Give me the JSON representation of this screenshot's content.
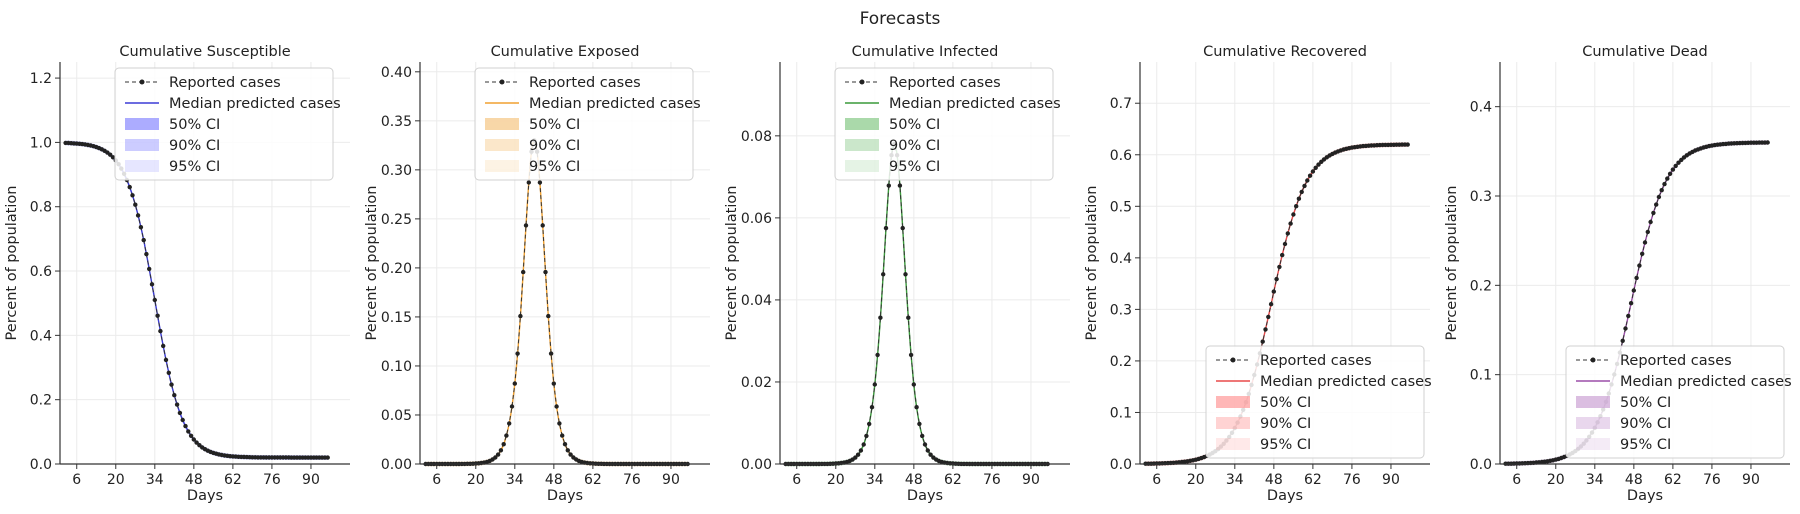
{
  "figure_title": "Forecasts",
  "legend_labels": [
    "Reported cases",
    "Median predicted cases",
    "50% CI",
    "90% CI",
    "95% CI"
  ],
  "chart_data": [
    {
      "type": "line",
      "title": "Cumulative Susceptible",
      "xlabel": "Days",
      "ylabel": "Percent of population",
      "xlim": [
        0,
        104
      ],
      "ylim": [
        0,
        1.25
      ],
      "xticks": [
        6,
        20,
        34,
        48,
        62,
        76,
        90
      ],
      "yticks": [
        0.0,
        0.2,
        0.4,
        0.6,
        0.8,
        1.0,
        1.2
      ],
      "ytick_labels": [
        "0.0",
        "0.2",
        "0.4",
        "0.6",
        "0.8",
        "1.0",
        "1.2"
      ],
      "color": "#3b3bd6",
      "band_color": "#8080ff",
      "curve": "sigmoid_down",
      "params": {
        "start": 1.0,
        "end": 0.02,
        "center": 34,
        "scale": 5
      },
      "legend_loc": "upper center",
      "series": [
        {
          "name": "Reported cases",
          "x_range": [
            2,
            96
          ],
          "step": 1
        },
        {
          "name": "Median predicted cases",
          "x_range": [
            2,
            96
          ]
        }
      ]
    },
    {
      "type": "line",
      "title": "Cumulative Exposed",
      "xlabel": "Days",
      "ylabel": "Percent of population",
      "xlim": [
        0,
        104
      ],
      "ylim": [
        0,
        0.41
      ],
      "xticks": [
        6,
        20,
        34,
        48,
        62,
        76,
        90
      ],
      "yticks": [
        0.0,
        0.05,
        0.1,
        0.15,
        0.2,
        0.25,
        0.3,
        0.35,
        0.4
      ],
      "ytick_labels": [
        "0.00",
        "0.05",
        "0.10",
        "0.15",
        "0.20",
        "0.25",
        "0.30",
        "0.35",
        "0.40"
      ],
      "color": "#f0a030",
      "band_color": "#f5c27a",
      "curve": "peak",
      "params": {
        "peak": 0.33,
        "center": 41,
        "scale": 5.3
      },
      "legend_loc": "upper center",
      "series": [
        {
          "name": "Reported cases",
          "x_range": [
            2,
            96
          ],
          "step": 1
        },
        {
          "name": "Median predicted cases",
          "x_range": [
            2,
            96
          ]
        }
      ]
    },
    {
      "type": "line",
      "title": "Cumulative Infected",
      "xlabel": "Days",
      "ylabel": "Percent of population",
      "xlim": [
        0,
        104
      ],
      "ylim": [
        0,
        0.098
      ],
      "xticks": [
        6,
        20,
        34,
        48,
        62,
        76,
        90
      ],
      "yticks": [
        0.0,
        0.02,
        0.04,
        0.06,
        0.08
      ],
      "ytick_labels": [
        "0.00",
        "0.02",
        "0.04",
        "0.06",
        "0.08"
      ],
      "color": "#3a9a3a",
      "band_color": "#7cc47c",
      "curve": "peak",
      "params": {
        "peak": 0.078,
        "center": 41,
        "scale": 5.3
      },
      "legend_loc": "upper center",
      "series": [
        {
          "name": "Reported cases",
          "x_range": [
            2,
            96
          ],
          "step": 1
        },
        {
          "name": "Median predicted cases",
          "x_range": [
            2,
            96
          ]
        }
      ]
    },
    {
      "type": "line",
      "title": "Cumulative Recovered",
      "xlabel": "Days",
      "ylabel": "Percent of population",
      "xlim": [
        0,
        104
      ],
      "ylim": [
        0,
        0.78
      ],
      "xticks": [
        6,
        20,
        34,
        48,
        62,
        76,
        90
      ],
      "yticks": [
        0.0,
        0.1,
        0.2,
        0.3,
        0.4,
        0.5,
        0.6,
        0.7
      ],
      "ytick_labels": [
        "0.0",
        "0.1",
        "0.2",
        "0.3",
        "0.4",
        "0.5",
        "0.6",
        "0.7"
      ],
      "color": "#e84a4a",
      "band_color": "#ff9090",
      "curve": "sigmoid_up",
      "params": {
        "start": 0.0,
        "end": 0.62,
        "center": 47,
        "scale": 6.3
      },
      "legend_loc": "lower right",
      "series": [
        {
          "name": "Reported cases",
          "x_range": [
            2,
            96
          ],
          "step": 1
        },
        {
          "name": "Median predicted cases",
          "x_range": [
            2,
            96
          ]
        }
      ]
    },
    {
      "type": "line",
      "title": "Cumulative Dead",
      "xlabel": "Days",
      "ylabel": "Percent of population",
      "xlim": [
        0,
        104
      ],
      "ylim": [
        0,
        0.45
      ],
      "xticks": [
        6,
        20,
        34,
        48,
        62,
        76,
        90
      ],
      "yticks": [
        0.0,
        0.1,
        0.2,
        0.3,
        0.4
      ],
      "ytick_labels": [
        "0.0",
        "0.1",
        "0.2",
        "0.3",
        "0.4"
      ],
      "color": "#9b4ea8",
      "band_color": "#c79bd1",
      "curve": "sigmoid_up",
      "params": {
        "start": 0.0,
        "end": 0.36,
        "center": 47,
        "scale": 6.3
      },
      "legend_loc": "lower right",
      "series": [
        {
          "name": "Reported cases",
          "x_range": [
            2,
            96
          ],
          "step": 1
        },
        {
          "name": "Median predicted cases",
          "x_range": [
            2,
            96
          ]
        }
      ]
    }
  ]
}
